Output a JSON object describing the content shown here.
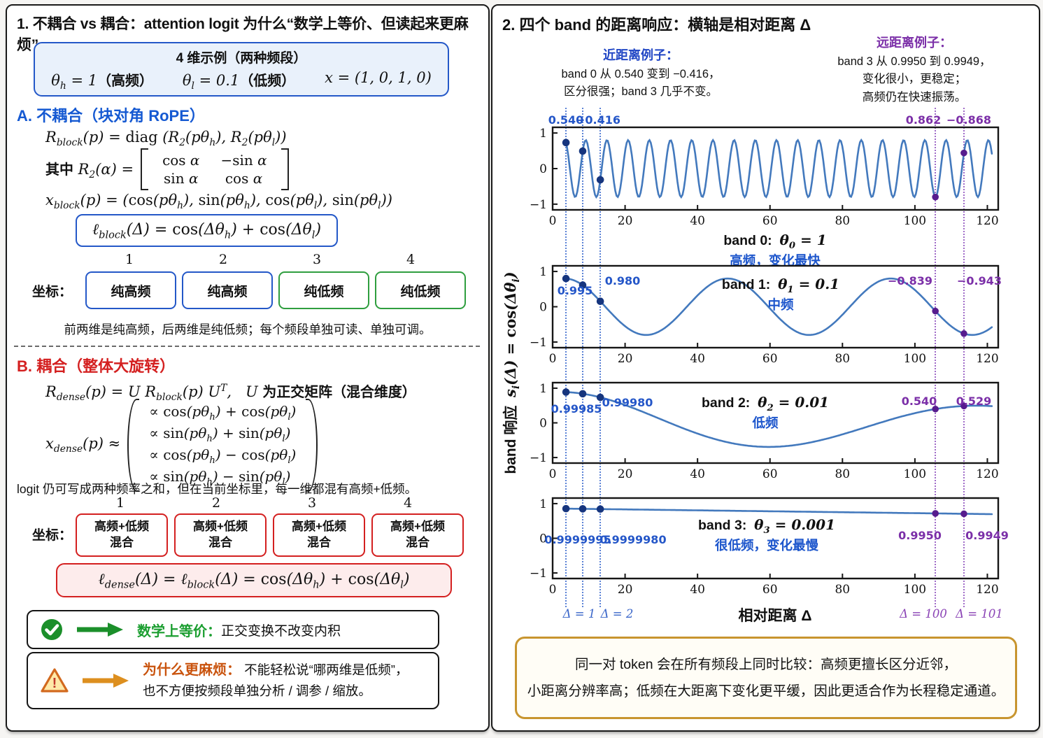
{
  "left": {
    "title": "1. 不耦合 vs 耦合：attention logit 为什么“数学上等价、但读起来更麻烦”",
    "example_box": {
      "heading": "4 维示例（两种频段）",
      "formulas": [
        "θ_h = 1（高频）",
        "θ_l = 0.1（低频）",
        "x = (1, 0, 1, 0)"
      ]
    },
    "section_a": {
      "heading": "A. 不耦合（块对角 RoPE）",
      "f_rblock": "R_{block}(p) = diag (R_2(pθ_h), R_2(pθ_l))",
      "f_where_prefix": "其中  R_2(α) =",
      "matrix": [
        [
          "cos α",
          "−sin α"
        ],
        [
          "sin α",
          "cos α"
        ]
      ],
      "f_xblock": "x_{block}(p) = (cos(pθ_h), sin(pθ_h), cos(pθ_l), sin(pθ_l))",
      "f_lblock": "ℓ_{block}(Δ) = cos(Δθ_h) + cos(Δθ_l)",
      "coord_label": "坐标：",
      "dims": [
        "1",
        "2",
        "3",
        "4"
      ],
      "dim_boxes": [
        {
          "text": "纯高频",
          "color": "blue"
        },
        {
          "text": "纯高频",
          "color": "blue"
        },
        {
          "text": "纯低频",
          "color": "green"
        },
        {
          "text": "纯低频",
          "color": "green"
        }
      ],
      "caption": "前两维是纯高频，后两维是纯低频；每个频段单独可读、单独可调。"
    },
    "section_b": {
      "heading": "B. 耦合（整体大旋转）",
      "f_rdense": "R_{dense}(p) = U R_{block}(p) U^T,　U 为正交矩阵（混合维度）",
      "f_xdense_prefix": "x_{dense}(p) ≈",
      "vector_rows": [
        "∝  cos(pθ_h) + cos(pθ_l)",
        "∝  sin(pθ_h) + sin(pθ_l)",
        "∝  cos(pθ_h) − cos(pθ_l)",
        "∝  sin(pθ_h) − sin(pθ_l)"
      ],
      "caption": "logit 仍可写成两种频率之和，但在当前坐标里，每一维都混有高频+低频。",
      "coord_label": "坐标：",
      "dims": [
        "1",
        "2",
        "3",
        "4"
      ],
      "dim_boxes": [
        {
          "line1": "高频+低频",
          "line2": "混合"
        },
        {
          "line1": "高频+低频",
          "line2": "混合"
        },
        {
          "line1": "高频+低频",
          "line2": "混合"
        },
        {
          "line1": "高频+低频",
          "line2": "混合"
        }
      ],
      "f_ldense": "ℓ_{dense}(Δ) = ℓ_{block}(Δ) = cos(Δθ_h) + cos(Δθ_l)"
    },
    "notes": [
      {
        "icon": "check",
        "label": "数学上等价：",
        "text": "正交变换不改变内积"
      },
      {
        "icon": "warning",
        "label": "为什么更麻烦：",
        "lines": [
          "不能轻松说“哪两维是低频”，",
          "也不方便按频段单独分析 / 调参 / 缩放。"
        ]
      }
    ]
  },
  "right": {
    "title": "2. 四个 band 的距离响应：横轴是相对距离 Δ",
    "near_annotation": {
      "heading": "近距离例子：",
      "lines": [
        "band 0 从 0.540 变到 −0.416，",
        "区分很强；band 3 几乎不变。"
      ]
    },
    "far_annotation": {
      "heading": "远距离例子：",
      "lines": [
        "band 3 从 0.9950 到 0.9949，",
        "变化很小，更稳定；",
        "高频仍在快速振荡。"
      ]
    },
    "ylabel_prefix": "band 响应",
    "ylabel_math": "s_i(Δ) = cos(Δθ_i)",
    "summary_lines": [
      "同一对 token 会在所有频段上同时比较：高频更擅长区分近邻，",
      "小距离分辨率高；低频在大距离下变化更平缓，因此更适合作为长程稳定通道。"
    ]
  },
  "chart_data": {
    "type": "line",
    "title": "四个 band 的距离响应",
    "xlabel": "相对距离 Δ",
    "ylabel": "band 响应 s_i(Δ) = cos(Δθ_i)",
    "x_ticks": [
      0,
      20,
      40,
      60,
      80,
      100,
      120
    ],
    "y_ticks": [
      1,
      0,
      -1
    ],
    "xlim": [
      0,
      123
    ],
    "ylim": [
      -1,
      1
    ],
    "grid": false,
    "guide_deltas": [
      1,
      2,
      100,
      101
    ],
    "guide_labels": [
      "Δ = 1",
      "Δ = 2",
      "Δ = 100",
      "Δ = 101"
    ],
    "bands": [
      {
        "name": "band 0",
        "theta_math": "θ_0 = 1",
        "theta": 1,
        "desc": "高频，变化最快",
        "marked_points": [
          {
            "delta": 1,
            "value": 0.54,
            "label": "0.540"
          },
          {
            "delta": 2,
            "value": -0.416,
            "label": "−0.416"
          },
          {
            "delta": 100,
            "value": 0.862,
            "label": "0.862"
          },
          {
            "delta": 101,
            "value": -0.868,
            "label": "−0.868"
          }
        ]
      },
      {
        "name": "band 1",
        "theta_math": "θ_1 = 0.1",
        "theta": 0.1,
        "desc": "中频",
        "marked_points": [
          {
            "delta": 1,
            "value": 0.995,
            "label": "0.995"
          },
          {
            "delta": 2,
            "value": 0.98,
            "label": "0.980"
          },
          {
            "delta": 100,
            "value": -0.839,
            "label": "−0.839"
          },
          {
            "delta": 101,
            "value": -0.943,
            "label": "−0.943"
          }
        ]
      },
      {
        "name": "band 2",
        "theta_math": "θ_2 = 0.01",
        "theta": 0.01,
        "desc": "低频",
        "marked_points": [
          {
            "delta": 1,
            "value": 0.99985,
            "label": "0.99985"
          },
          {
            "delta": 2,
            "value": 0.9998,
            "label": "0.99980"
          },
          {
            "delta": 100,
            "value": 0.54,
            "label": "0.540"
          },
          {
            "delta": 101,
            "value": 0.529,
            "label": "0.529"
          }
        ]
      },
      {
        "name": "band 3",
        "theta_math": "θ_3 = 0.001",
        "theta": 0.001,
        "desc": "很低频，变化最慢",
        "marked_points": [
          {
            "delta": 1,
            "value": 0.9999995,
            "label": "0.9999995"
          },
          {
            "delta": 2,
            "value": 0.999998,
            "label": "0.9999980"
          },
          {
            "delta": 100,
            "value": 0.995,
            "label": "0.9950"
          },
          {
            "delta": 101,
            "value": 0.9949,
            "label": "0.9949"
          }
        ]
      }
    ]
  },
  "colors": {
    "blue": "#2458c8",
    "green": "#2f9e3f",
    "red": "#d42020",
    "purple": "#7b2fa8",
    "curve": "#4379bd",
    "navy_dot": "#16357e",
    "purple_dot": "#571c8e",
    "gold": "#c8952f",
    "green_icon": "#1b8f2a",
    "orange_icon": "#dd8f1f",
    "orange_text": "#c9530d"
  }
}
